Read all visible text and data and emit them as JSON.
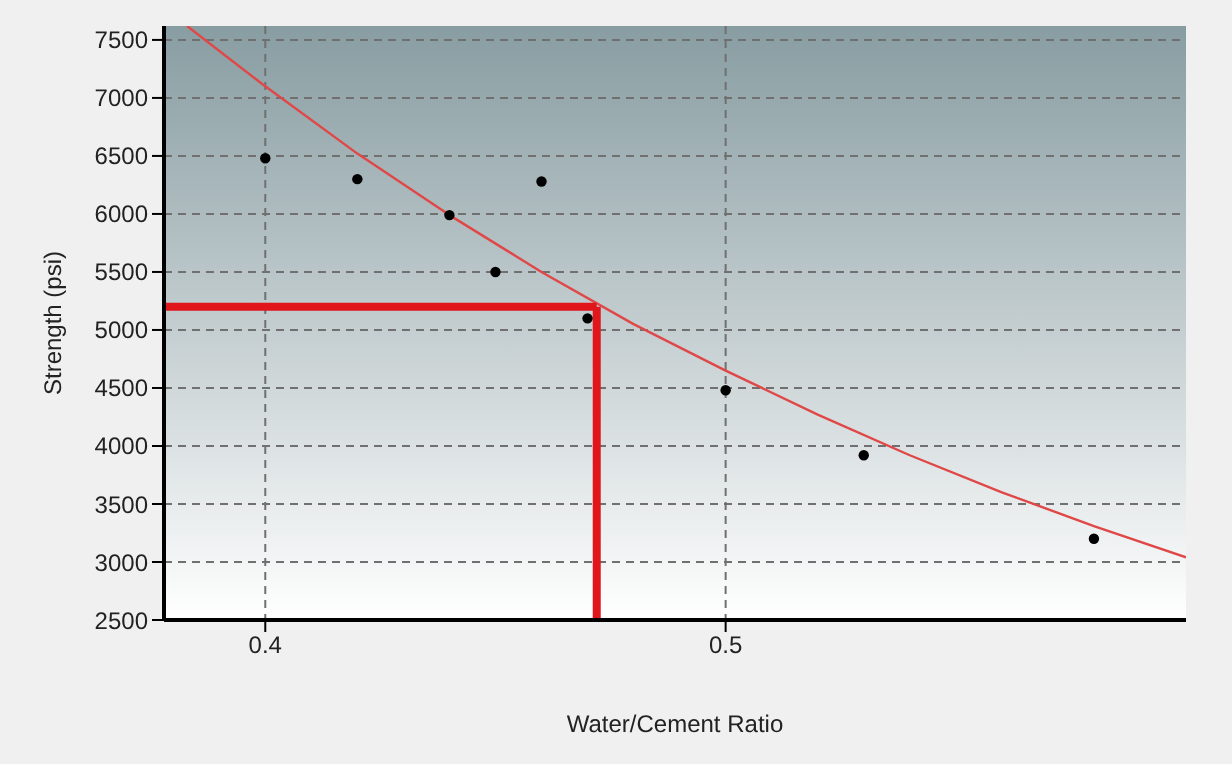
{
  "chart_data": {
    "type": "scatter",
    "xlabel": "Water/Cement Ratio",
    "ylabel": "Strength (psi)",
    "xlim": [
      0.378,
      0.6
    ],
    "xticks": [
      0.4,
      0.5
    ],
    "ylim": [
      2500,
      7620
    ],
    "yticks": [
      2500,
      3000,
      3500,
      4000,
      4500,
      5000,
      5500,
      6000,
      6500,
      7000,
      7500
    ],
    "grid": true,
    "legend": false,
    "marker": "circle",
    "series": [
      {
        "type": "scatter",
        "color": "#000000",
        "x": [
          0.4,
          0.42,
          0.44,
          0.45,
          0.46,
          0.47,
          0.5,
          0.53,
          0.58
        ],
        "values": [
          6480,
          6300,
          5990,
          5500,
          6280,
          5100,
          4480,
          3920,
          3200
        ]
      },
      {
        "type": "line",
        "color": "#e04848",
        "marker": "none",
        "line_style": "solid",
        "x": [
          0.383,
          0.4,
          0.42,
          0.44,
          0.46,
          0.48,
          0.5,
          0.52,
          0.54,
          0.56,
          0.58,
          0.6
        ],
        "values": [
          7620,
          7100,
          6520,
          5990,
          5500,
          5050,
          4650,
          4270,
          3920,
          3600,
          3310,
          3040
        ]
      }
    ],
    "ref_lines": [
      {
        "axis": "y",
        "value": 5200,
        "color": "#e0161b"
      },
      {
        "axis": "x",
        "value": 0.472,
        "color": "#e0161b"
      }
    ]
  }
}
